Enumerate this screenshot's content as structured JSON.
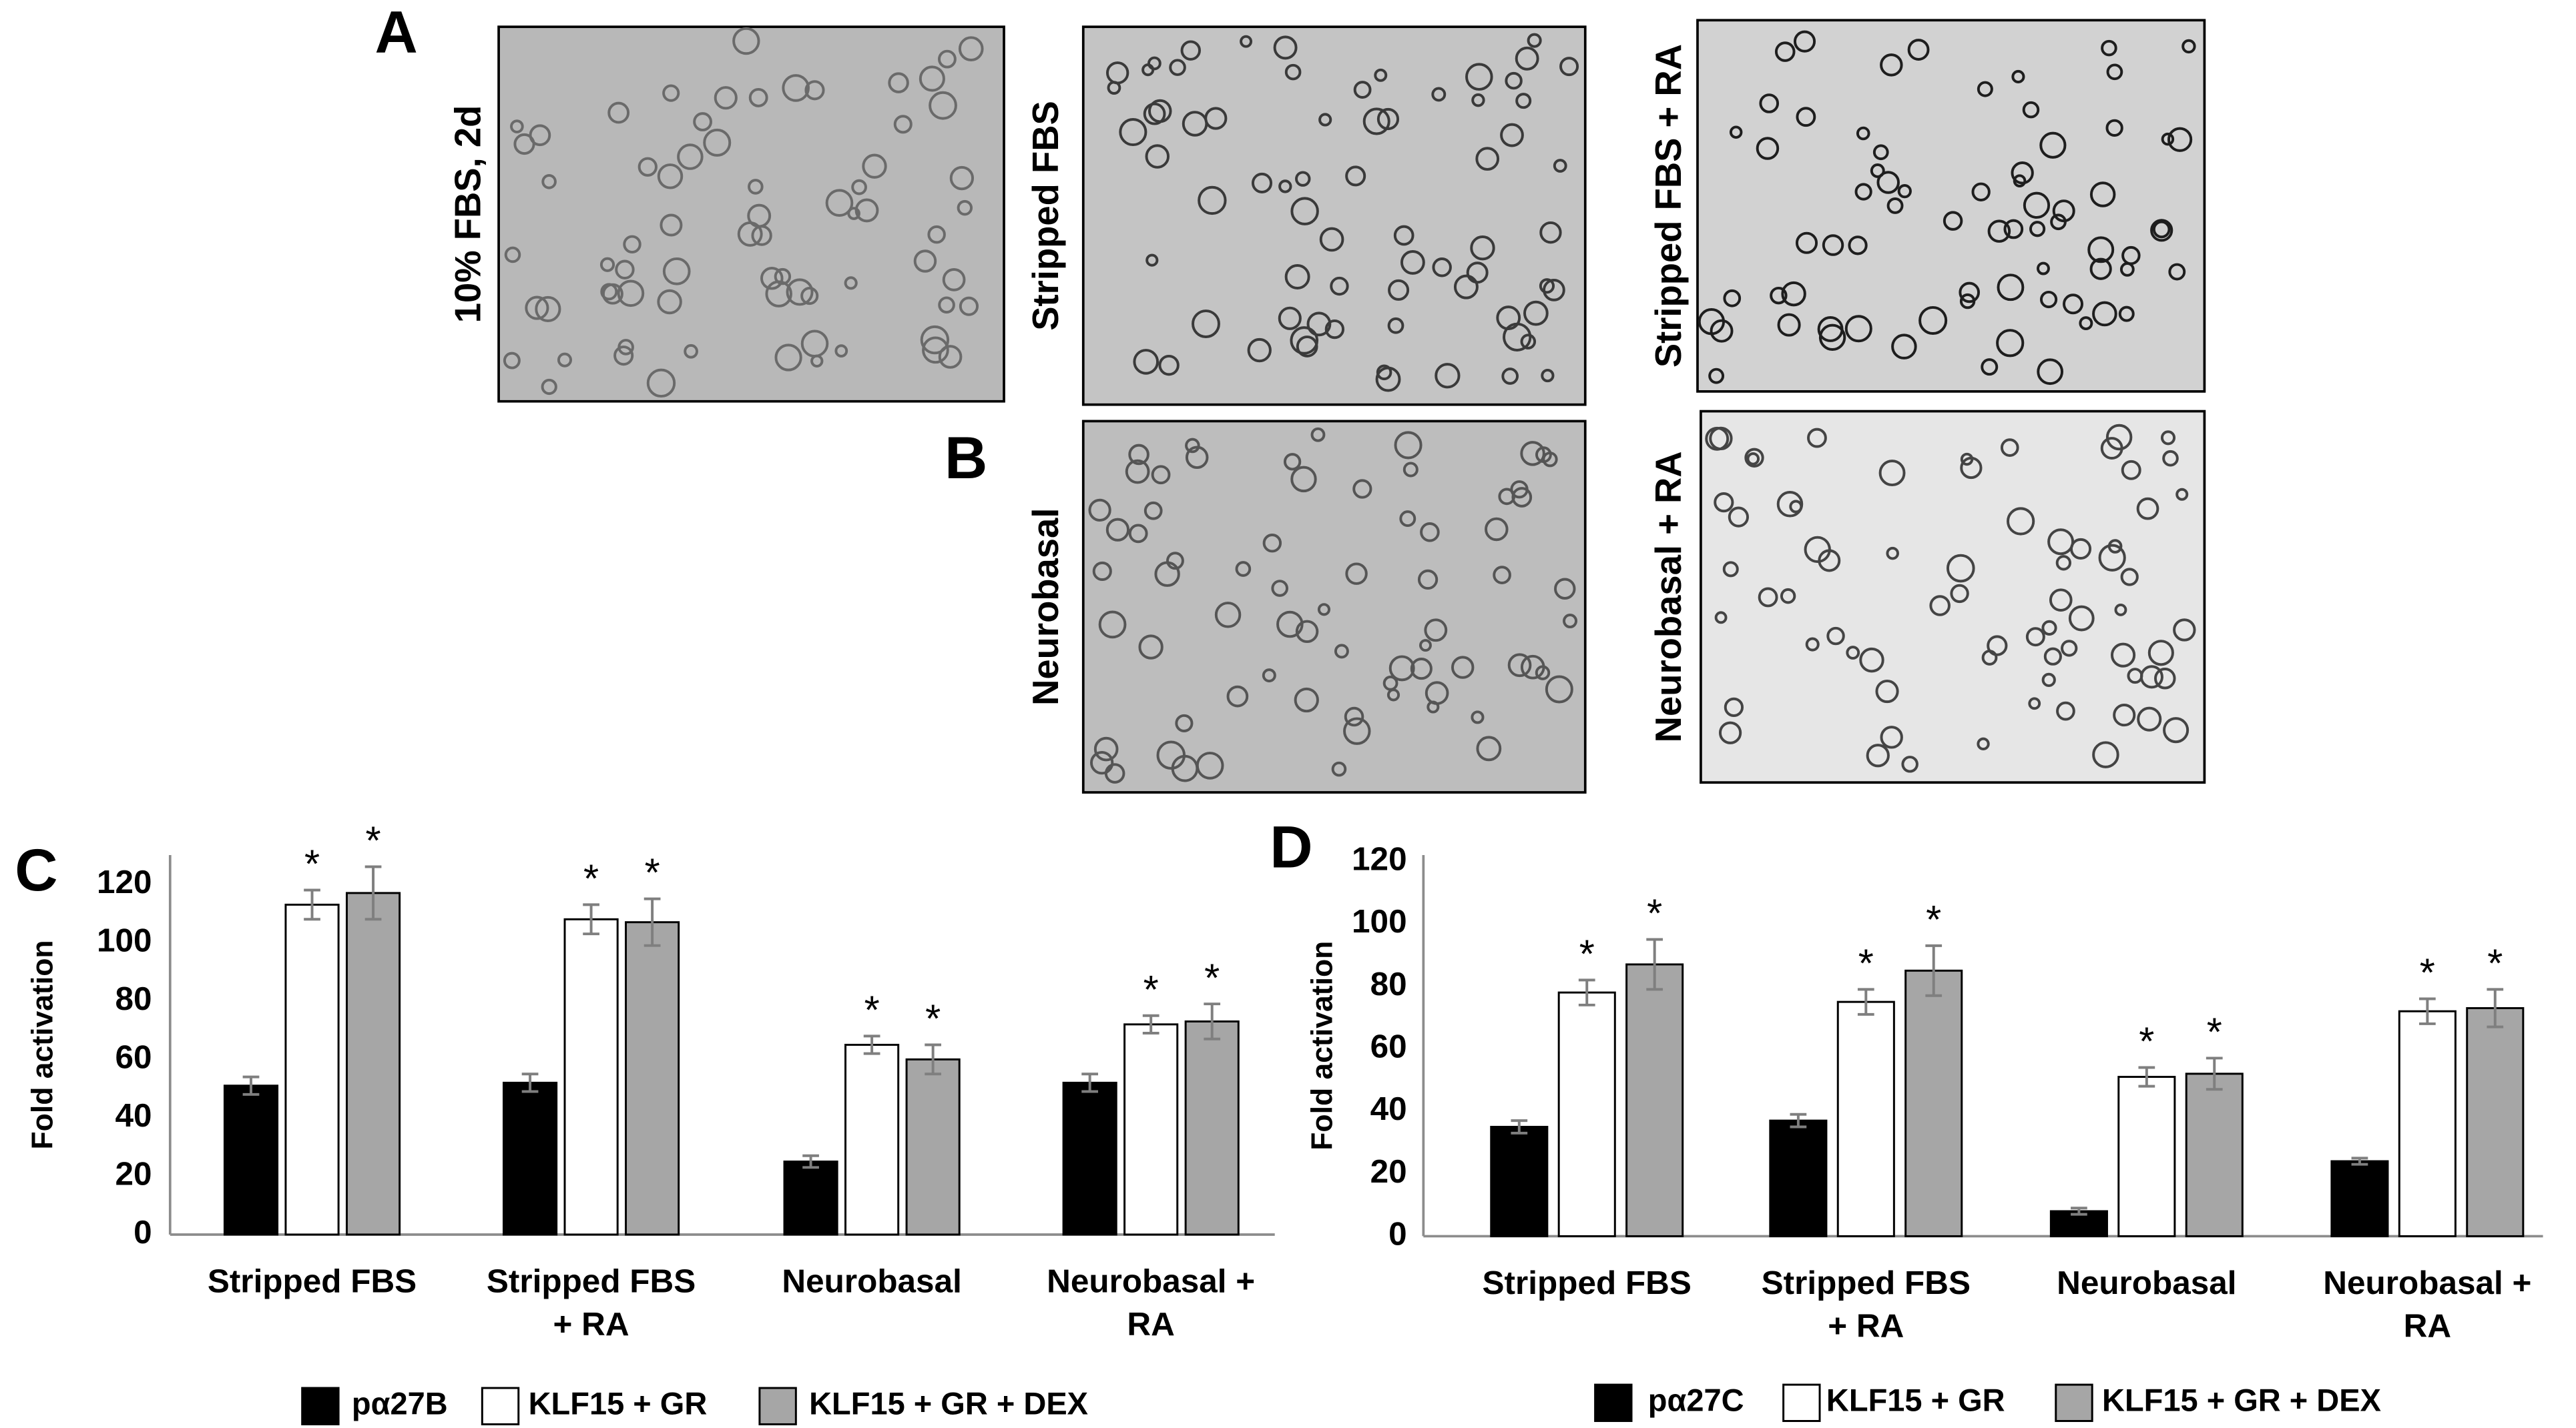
{
  "figure": {
    "panel_labels": [
      "A",
      "B",
      "C",
      "D"
    ],
    "micrographs": [
      {
        "label": "10% FBS, 2d"
      },
      {
        "label": "Stripped FBS"
      },
      {
        "label": "Stripped FBS + RA"
      },
      {
        "label": "Neurobasal"
      },
      {
        "label": "Neurobasal + RA"
      }
    ]
  },
  "chart_data": [
    {
      "type": "bar",
      "y_label": "Fold activation",
      "categories": [
        "Stripped FBS",
        "Stripped FBS + RA",
        "Neurobasal",
        "Neurobasal + RA"
      ],
      "ylim": [
        0,
        130
      ],
      "yticks": [
        0,
        20,
        40,
        60,
        80,
        100,
        120
      ],
      "grid": false,
      "legend": "bottom",
      "series": [
        {
          "name": "pα27B",
          "color": "#000000",
          "values": [
            51,
            52,
            25,
            52
          ],
          "errors": [
            3,
            3,
            2,
            3
          ]
        },
        {
          "name": "KLF15 + GR",
          "color": "#ffffff",
          "values": [
            113,
            108,
            65,
            72
          ],
          "errors": [
            5,
            5,
            3,
            3
          ],
          "annotations": [
            "*",
            "*",
            "*",
            "*"
          ]
        },
        {
          "name": "KLF15 + GR + DEX",
          "color": "#a6a6a6",
          "values": [
            117,
            107,
            60,
            73
          ],
          "errors": [
            9,
            8,
            5,
            6
          ],
          "annotations": [
            "*",
            "*",
            "*",
            "*"
          ]
        }
      ]
    },
    {
      "type": "bar",
      "y_label": "Fold activation",
      "categories": [
        "Stripped FBS",
        "Stripped FBS + RA",
        "Neurobasal",
        "Neurobasal + RA"
      ],
      "ylim": [
        0,
        122
      ],
      "yticks": [
        0,
        20,
        40,
        60,
        80,
        100,
        120
      ],
      "grid": false,
      "legend": "bottom",
      "series": [
        {
          "name": "pα27C",
          "color": "#000000",
          "values": [
            35,
            37,
            8,
            24
          ],
          "errors": [
            2,
            2,
            1,
            1
          ]
        },
        {
          "name": "KLF15 + GR",
          "color": "#ffffff",
          "values": [
            78,
            75,
            51,
            72
          ],
          "errors": [
            4,
            4,
            3,
            4
          ],
          "annotations": [
            "*",
            "*",
            "*",
            "*"
          ]
        },
        {
          "name": "KLF15 + GR + DEX",
          "color": "#a6a6a6",
          "values": [
            87,
            85,
            52,
            73
          ],
          "errors": [
            8,
            8,
            5,
            6
          ],
          "annotations": [
            "*",
            "*",
            "*",
            "*"
          ]
        }
      ]
    }
  ]
}
